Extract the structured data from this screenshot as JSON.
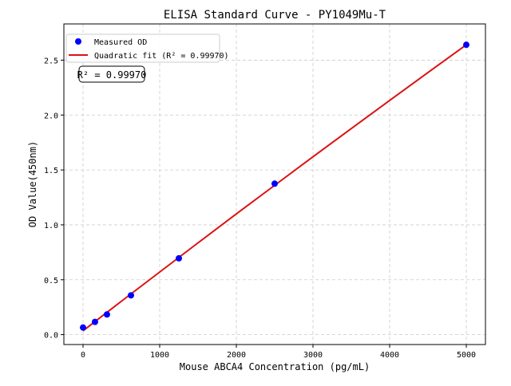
{
  "chart_data": {
    "type": "scatter",
    "title": "ELISA Standard Curve - PY1049Mu-T",
    "xlabel": "Mouse ABCA4 Concentration (pg/mL)",
    "ylabel": "OD Value(450nm)",
    "xlim": [
      -250,
      5250
    ],
    "ylim": [
      -0.09,
      2.83
    ],
    "xticks": [
      0,
      1000,
      2000,
      3000,
      4000,
      5000
    ],
    "yticks": [
      0.0,
      0.5,
      1.0,
      1.5,
      2.0,
      2.5
    ],
    "xtick_labels": [
      "0",
      "1000",
      "2000",
      "3000",
      "4000",
      "5000"
    ],
    "ytick_labels": [
      "0.0",
      "0.5",
      "1.0",
      "1.5",
      "2.0",
      "2.5"
    ],
    "grid": true,
    "legend_placement": "top-left",
    "series": [
      {
        "name": "Measured OD",
        "kind": "scatter",
        "color": "#0000ff",
        "x": [
          0,
          156,
          312,
          625,
          1250,
          2500,
          5000
        ],
        "y": [
          0.065,
          0.116,
          0.184,
          0.358,
          0.695,
          1.375,
          2.64
        ]
      },
      {
        "name": "Quadratic fit (R² = 0.99970)",
        "kind": "line",
        "color": "#dd1111",
        "x": [
          0,
          500,
          1000,
          1500,
          2000,
          2500,
          3000,
          3500,
          4000,
          4500,
          5000
        ],
        "y": [
          0.035,
          0.304,
          0.57,
          0.836,
          1.1,
          1.36,
          1.62,
          1.877,
          2.133,
          2.387,
          2.64
        ]
      }
    ],
    "annotation": "R² = 0.99970"
  }
}
